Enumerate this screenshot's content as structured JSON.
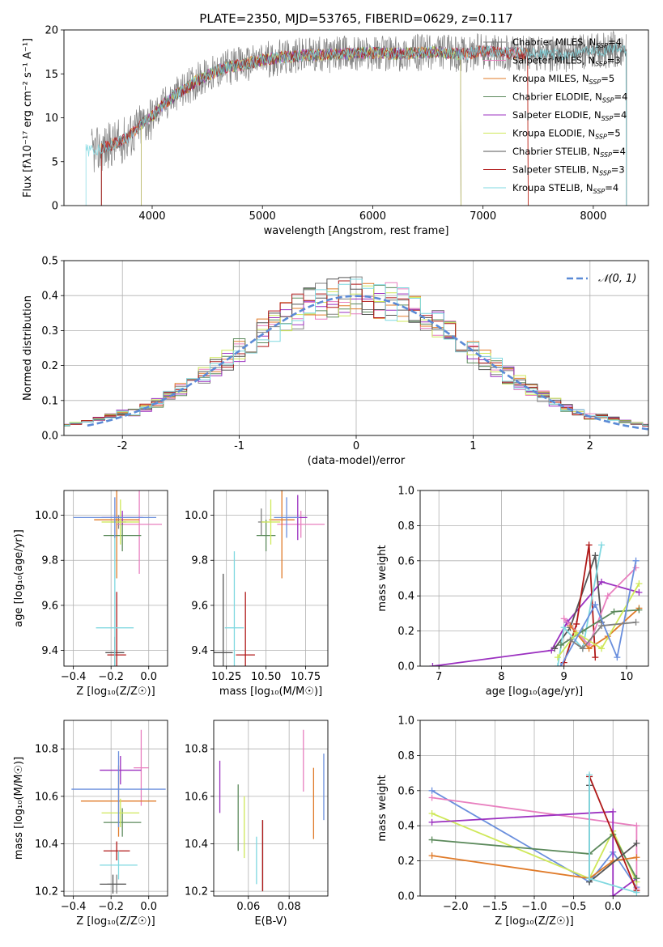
{
  "colors": {
    "chabrier_miles": "#808080",
    "salpeter_miles": "#e87fbf",
    "kroupa_miles": "#e07b2a",
    "chabrier_elodie": "#5c8a5c",
    "salpeter_elodie": "#9b30c0",
    "kroupa_elodie": "#cfe85a",
    "chabrier_stelib": "#555555",
    "salpeter_stelib": "#b01818",
    "kroupa_stelib": "#7fd8e0",
    "blue_model": "#6a8fdd",
    "normal_curve": "#5b8ad6"
  },
  "chart_data": [
    {
      "id": "spectrum",
      "type": "line",
      "title": "PLATE=2350, MJD=53765, FIBERID=0629, z=0.117",
      "xlabel": "wavelength [Angstrom, rest frame]",
      "ylabel": "Flux [fλ10⁻¹⁷ erg cm⁻² s⁻¹ A⁻¹]",
      "xlim": [
        3200,
        8500
      ],
      "ylim": [
        0,
        20
      ],
      "xticks": [
        4000,
        5000,
        6000,
        7000,
        8000
      ],
      "yticks": [
        0,
        5,
        10,
        15,
        20
      ],
      "legend_position": "right",
      "legend": [
        {
          "label": "Chabrier MILES, N",
          "sub": "SSP",
          "tail": "=4",
          "color": "chabrier_miles"
        },
        {
          "label": "Salpeter MILES, N",
          "sub": "SSP",
          "tail": "=3",
          "color": "salpeter_miles"
        },
        {
          "label": "Kroupa MILES, N",
          "sub": "SSP",
          "tail": "=5",
          "color": "kroupa_miles"
        },
        {
          "label": "Chabrier ELODIE, N",
          "sub": "SSP",
          "tail": "=4",
          "color": "chabrier_elodie"
        },
        {
          "label": "Salpeter ELODIE, N",
          "sub": "SSP",
          "tail": "=4",
          "color": "salpeter_elodie"
        },
        {
          "label": "Kroupa ELODIE, N",
          "sub": "SSP",
          "tail": "=5",
          "color": "kroupa_elodie"
        },
        {
          "label": "Chabrier STELIB, N",
          "sub": "SSP",
          "tail": "=4",
          "color": "chabrier_stelib"
        },
        {
          "label": "Salpeter STELIB, N",
          "sub": "SSP",
          "tail": "=3",
          "color": "salpeter_stelib"
        },
        {
          "label": "Kroupa STELIB, N",
          "sub": "SSP",
          "tail": "=4",
          "color": "kroupa_stelib"
        }
      ],
      "continuum": {
        "x": [
          3400,
          3500,
          3600,
          3700,
          3800,
          3900,
          4000,
          4100,
          4200,
          4300,
          4400,
          4500,
          4600,
          4700,
          4800,
          4900,
          5000,
          5200,
          5400,
          5600,
          5800,
          6000,
          6200,
          6400,
          6600,
          6800,
          7000,
          7200,
          7400,
          7600,
          7800,
          8000,
          8200
        ],
        "y": [
          6.3,
          6.2,
          6.8,
          7.2,
          8.0,
          9.2,
          10.2,
          11.5,
          12.5,
          13.3,
          14.2,
          14.8,
          15.4,
          15.8,
          16.0,
          16.3,
          16.6,
          16.9,
          17.1,
          17.2,
          17.3,
          17.4,
          17.3,
          17.4,
          17.5,
          17.2,
          17.6,
          17.4,
          17.3,
          17.2,
          17.3,
          17.6,
          17.8
        ]
      },
      "model_coverage": [
        {
          "color": "chabrier_miles",
          "start": 3540,
          "end": 8300
        },
        {
          "color": "salpeter_miles",
          "start": 3540,
          "end": 7410
        },
        {
          "color": "kroupa_miles",
          "start": 3540,
          "end": 7410
        },
        {
          "color": "chabrier_elodie",
          "start": 3900,
          "end": 6800
        },
        {
          "color": "salpeter_elodie",
          "start": 3900,
          "end": 6800
        },
        {
          "color": "kroupa_elodie",
          "start": 3900,
          "end": 6800
        },
        {
          "color": "chabrier_stelib",
          "start": 3540,
          "end": 8300
        },
        {
          "color": "salpeter_stelib",
          "start": 3540,
          "end": 7410
        },
        {
          "color": "kroupa_stelib",
          "start": 3400,
          "end": 8300
        }
      ]
    },
    {
      "id": "residuals",
      "type": "histogram",
      "xlabel": "(data-model)/error",
      "ylabel": "Normed distribution",
      "xlim": [
        -2.5,
        2.5
      ],
      "ylim": [
        0,
        0.5
      ],
      "xticks": [
        -2,
        -1,
        0,
        1,
        2
      ],
      "yticks": [
        0.0,
        0.1,
        0.2,
        0.3,
        0.4,
        0.5
      ],
      "grid": true,
      "legend_position": "top-right",
      "legend": [
        {
          "label": "𝒩(0, 1)",
          "color": "normal_curve",
          "dashed": true
        }
      ],
      "bin_width": 0.1,
      "bin_start": -2.5,
      "series": [
        {
          "color": "chabrier_miles",
          "seed": 1
        },
        {
          "color": "salpeter_miles",
          "seed": 2
        },
        {
          "color": "kroupa_miles",
          "seed": 3
        },
        {
          "color": "chabrier_elodie",
          "seed": 4
        },
        {
          "color": "salpeter_elodie",
          "seed": 5
        },
        {
          "color": "kroupa_elodie",
          "seed": 6
        },
        {
          "color": "chabrier_stelib",
          "seed": 7
        },
        {
          "color": "salpeter_stelib",
          "seed": 8
        },
        {
          "color": "kroupa_stelib",
          "seed": 9
        }
      ]
    },
    {
      "id": "age_vs_z",
      "type": "errorbar",
      "xlabel": "Z [log₁₀(Z/Z☉)]",
      "ylabel": "age  [log₁₀(age/yr)]",
      "xlim": [
        -0.45,
        0.1
      ],
      "ylim": [
        9.33,
        10.11
      ],
      "xticks": [
        -0.4,
        -0.2,
        0.0
      ],
      "xticklabels": [
        "−0.4",
        "−0.2",
        "0.0"
      ],
      "yticks": [
        9.4,
        9.6,
        9.8,
        10.0
      ],
      "grid": true,
      "points": [
        {
          "color": "chabrier_miles",
          "x": -0.16,
          "xerr": 0.04,
          "y": 9.97,
          "yerr": 0.03
        },
        {
          "color": "salpeter_miles",
          "x": -0.05,
          "xerr": 0.12,
          "y": 9.96,
          "yerr": 0.22
        },
        {
          "color": "kroupa_miles",
          "x": -0.17,
          "xerr": 0.12,
          "y": 9.98,
          "yerr": 0.26
        },
        {
          "color": "chabrier_elodie",
          "x": -0.14,
          "xerr": 0.1,
          "y": 9.91,
          "yerr": 0.07
        },
        {
          "color": "salpeter_elodie",
          "x": -0.14,
          "xerr": 0.11,
          "y": 9.99,
          "yerr": 0.03
        },
        {
          "color": "kroupa_elodie",
          "x": -0.15,
          "xerr": 0.1,
          "y": 9.97,
          "yerr": 0.1
        },
        {
          "color": "chabrier_stelib",
          "x": -0.18,
          "xerr": 0.05,
          "y": 9.39,
          "yerr": 0.07
        },
        {
          "color": "salpeter_stelib",
          "x": -0.17,
          "xerr": 0.05,
          "y": 9.38,
          "yerr": 0.28
        },
        {
          "color": "kroupa_stelib",
          "x": -0.18,
          "xerr": 0.1,
          "y": 9.5,
          "yerr": 0.41
        },
        {
          "color": "blue_model",
          "x": -0.18,
          "xerr": 0.22,
          "y": 9.99,
          "yerr": 0.09
        }
      ]
    },
    {
      "id": "age_vs_mass",
      "type": "errorbar",
      "xlabel": "mass [log₁₀(M/M☉)]",
      "xlim": [
        10.17,
        10.89
      ],
      "ylim": [
        9.33,
        10.11
      ],
      "xticks": [
        10.25,
        10.5,
        10.75
      ],
      "xticklabels": [
        "10.25",
        "10.50",
        "10.75"
      ],
      "yticks": [
        9.4,
        9.6,
        9.8,
        10.0
      ],
      "grid": true,
      "points": [
        {
          "color": "chabrier_miles",
          "x": 10.47,
          "xerr": 0.02,
          "y": 9.97,
          "yerr": 0.06
        },
        {
          "color": "salpeter_miles",
          "x": 10.72,
          "xerr": 0.15,
          "y": 9.96,
          "yerr": 0.06
        },
        {
          "color": "kroupa_miles",
          "x": 10.6,
          "xerr": 0.08,
          "y": 9.98,
          "yerr": 0.26
        },
        {
          "color": "chabrier_elodie",
          "x": 10.5,
          "xerr": 0.06,
          "y": 9.91,
          "yerr": 0.07
        },
        {
          "color": "salpeter_elodie",
          "x": 10.7,
          "xerr": 0.06,
          "y": 9.99,
          "yerr": 0.1
        },
        {
          "color": "kroupa_elodie",
          "x": 10.53,
          "xerr": 0.06,
          "y": 9.97,
          "yerr": 0.1
        },
        {
          "color": "chabrier_stelib",
          "x": 10.23,
          "xerr": 0.06,
          "y": 9.39,
          "yerr": 0.35
        },
        {
          "color": "salpeter_stelib",
          "x": 10.37,
          "xerr": 0.06,
          "y": 9.38,
          "yerr": 0.28
        },
        {
          "color": "kroupa_stelib",
          "x": 10.3,
          "xerr": 0.06,
          "y": 9.5,
          "yerr": 0.34
        },
        {
          "color": "blue_model",
          "x": 10.63,
          "xerr": 0.08,
          "y": 9.99,
          "yerr": 0.09
        }
      ]
    },
    {
      "id": "mass_weight_vs_age",
      "type": "line",
      "xlabel": "age  [log₁₀(age/yr)]",
      "ylabel": "mass weight",
      "xlim": [
        6.7,
        10.35
      ],
      "ylim": [
        0,
        1
      ],
      "xticks": [
        7,
        8,
        9,
        10
      ],
      "yticks": [
        0.0,
        0.2,
        0.4,
        0.6,
        0.8,
        1.0
      ],
      "grid": true,
      "series": [
        {
          "color": "salpeter_elodie",
          "x": [
            6.9,
            8.8,
            9.05,
            9.6,
            10.2
          ],
          "y": [
            0.0,
            0.09,
            0.25,
            0.48,
            0.42
          ]
        },
        {
          "color": "chabrier_stelib",
          "x": [
            8.85,
            9.1,
            9.5,
            9.6
          ],
          "y": [
            0.1,
            0.22,
            0.63,
            0.25
          ]
        },
        {
          "color": "salpeter_stelib",
          "x": [
            9.0,
            9.2,
            9.4,
            9.5
          ],
          "y": [
            0.02,
            0.24,
            0.69,
            0.05
          ]
        },
        {
          "color": "kroupa_stelib",
          "x": [
            8.9,
            9.0,
            9.3,
            9.6
          ],
          "y": [
            0.0,
            0.22,
            0.1,
            0.69
          ]
        },
        {
          "color": "salpeter_miles",
          "x": [
            9.0,
            9.4,
            9.7,
            10.15
          ],
          "y": [
            0.27,
            0.12,
            0.4,
            0.56
          ]
        },
        {
          "color": "kroupa_miles",
          "x": [
            9.1,
            9.4,
            9.7,
            10.2
          ],
          "y": [
            0.23,
            0.1,
            0.17,
            0.33
          ]
        },
        {
          "color": "chabrier_elodie",
          "x": [
            8.95,
            9.3,
            9.8,
            10.2
          ],
          "y": [
            0.12,
            0.2,
            0.31,
            0.32
          ]
        },
        {
          "color": "kroupa_elodie",
          "x": [
            8.9,
            9.2,
            9.6,
            10.2
          ],
          "y": [
            0.05,
            0.19,
            0.1,
            0.47
          ]
        },
        {
          "color": "blue_model",
          "x": [
            8.95,
            9.5,
            9.85,
            10.15
          ],
          "y": [
            0.0,
            0.35,
            0.05,
            0.6
          ]
        },
        {
          "color": "chabrier_miles",
          "x": [
            9.1,
            9.3,
            9.6,
            10.15
          ],
          "y": [
            0.15,
            0.1,
            0.23,
            0.25
          ]
        }
      ]
    },
    {
      "id": "mass_vs_z",
      "type": "errorbar",
      "xlabel": "Z [log₁₀(Z/Z☉)]",
      "ylabel": "mass [log₁₀(M/M☉)]",
      "xlim": [
        -0.45,
        0.1
      ],
      "ylim": [
        10.18,
        10.92
      ],
      "xticks": [
        -0.4,
        -0.2,
        0.0
      ],
      "xticklabels": [
        "−0.4",
        "−0.2",
        "0.0"
      ],
      "yticks": [
        10.2,
        10.4,
        10.6,
        10.8
      ],
      "grid": true,
      "points": [
        {
          "color": "chabrier_miles",
          "x": -0.17,
          "xerr": 0.05,
          "y": 10.23,
          "yerr": 0.04
        },
        {
          "color": "salpeter_miles",
          "x": -0.04,
          "xerr": 0.04,
          "y": 10.72,
          "yerr": 0.16
        },
        {
          "color": "kroupa_miles",
          "x": -0.16,
          "xerr": 0.2,
          "y": 10.58,
          "yerr": 0.15
        },
        {
          "color": "chabrier_elodie",
          "x": -0.14,
          "xerr": 0.1,
          "y": 10.49,
          "yerr": 0.06
        },
        {
          "color": "salpeter_elodie",
          "x": -0.15,
          "xerr": 0.11,
          "y": 10.71,
          "yerr": 0.06
        },
        {
          "color": "kroupa_elodie",
          "x": -0.15,
          "xerr": 0.1,
          "y": 10.53,
          "yerr": 0.06
        },
        {
          "color": "chabrier_stelib",
          "x": -0.19,
          "xerr": 0.07,
          "y": 10.23,
          "yerr": 0.04
        },
        {
          "color": "salpeter_stelib",
          "x": -0.17,
          "xerr": 0.07,
          "y": 10.37,
          "yerr": 0.04
        },
        {
          "color": "kroupa_stelib",
          "x": -0.16,
          "xerr": 0.1,
          "y": 10.31,
          "yerr": 0.06
        },
        {
          "color": "blue_model",
          "x": -0.16,
          "xerr": 0.25,
          "y": 10.63,
          "yerr": 0.16
        }
      ]
    },
    {
      "id": "mass_vs_ebv",
      "type": "errorbar",
      "xlabel": "E(B-V)",
      "xlim": [
        0.043,
        0.099
      ],
      "ylim": [
        10.18,
        10.92
      ],
      "xticks": [
        0.06,
        0.08
      ],
      "xticklabels": [
        "0.06",
        "0.08"
      ],
      "yticks": [
        10.2,
        10.4,
        10.6,
        10.8
      ],
      "grid": true,
      "points": [
        {
          "color": "salpeter_elodie",
          "x": 0.046,
          "y": 10.64,
          "yerr": 0.11
        },
        {
          "color": "chabrier_elodie",
          "x": 0.055,
          "y": 10.51,
          "yerr": 0.14
        },
        {
          "color": "kroupa_elodie",
          "x": 0.058,
          "y": 10.47,
          "yerr": 0.13
        },
        {
          "color": "kroupa_stelib",
          "x": 0.064,
          "y": 10.33,
          "yerr": 0.1
        },
        {
          "color": "chabrier_stelib",
          "x": 0.067,
          "y": 10.35,
          "yerr": 0.15
        },
        {
          "color": "salpeter_stelib",
          "x": 0.067,
          "y": 10.35,
          "yerr": 0.15
        },
        {
          "color": "salpeter_miles",
          "x": 0.087,
          "y": 10.75,
          "yerr": 0.13
        },
        {
          "color": "kroupa_miles",
          "x": 0.092,
          "y": 10.57,
          "yerr": 0.15
        },
        {
          "color": "blue_model",
          "x": 0.097,
          "y": 10.64,
          "yerr": 0.14
        }
      ]
    },
    {
      "id": "mass_weight_vs_z",
      "type": "line",
      "xlabel": "Z [log₁₀(Z/Z☉)]",
      "ylabel": "mass weight",
      "xlim": [
        -2.45,
        0.45
      ],
      "ylim": [
        0,
        1
      ],
      "xticks": [
        -2.0,
        -1.5,
        -1.0,
        -0.5,
        0.0
      ],
      "xticklabels": [
        "−2.0",
        "−1.5",
        "−1.0",
        "−0.5",
        "0.0"
      ],
      "yticks": [
        0.0,
        0.2,
        0.4,
        0.6,
        0.8,
        1.0
      ],
      "grid": true,
      "series": [
        {
          "color": "blue_model",
          "x": [
            -2.3,
            -0.3,
            0.0,
            0.3
          ],
          "y": [
            0.6,
            0.08,
            0.25,
            0.05
          ]
        },
        {
          "color": "salpeter_miles",
          "x": [
            -2.3,
            0.3,
            0.3
          ],
          "y": [
            0.56,
            0.4,
            0.04
          ]
        },
        {
          "color": "kroupa_elodie",
          "x": [
            -2.3,
            -0.3,
            0.0,
            0.3
          ],
          "y": [
            0.47,
            0.1,
            0.37,
            0.08
          ]
        },
        {
          "color": "salpeter_elodie",
          "x": [
            -2.3,
            0.0,
            0.0,
            0.3
          ],
          "y": [
            0.42,
            0.48,
            0.0,
            0.1
          ]
        },
        {
          "color": "chabrier_elodie",
          "x": [
            -2.3,
            -0.3,
            0.0,
            0.3
          ],
          "y": [
            0.32,
            0.24,
            0.35,
            0.1
          ]
        },
        {
          "color": "kroupa_miles",
          "x": [
            -2.3,
            -0.3,
            0.0,
            0.3
          ],
          "y": [
            0.23,
            0.1,
            0.2,
            0.22
          ]
        },
        {
          "color": "salpeter_stelib",
          "x": [
            -0.3,
            0.3
          ],
          "y": [
            0.68,
            0.03
          ]
        },
        {
          "color": "chabrier_stelib",
          "x": [
            -0.3,
            -0.3,
            0.3
          ],
          "y": [
            0.63,
            0.08,
            0.3
          ]
        },
        {
          "color": "kroupa_stelib",
          "x": [
            -0.3,
            -0.3,
            0.3
          ],
          "y": [
            0.69,
            0.1,
            0.02
          ]
        }
      ]
    }
  ]
}
